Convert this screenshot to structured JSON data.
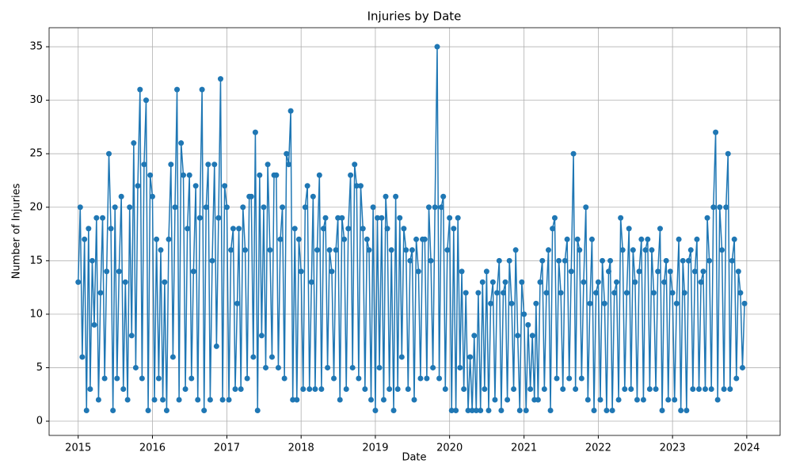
{
  "chart_data": {
    "type": "line",
    "title": "Injuries by Date",
    "x_label": "Date",
    "y_label": "Number of Injuries",
    "x": [
      "2015-01-01",
      "2015-01-11",
      "2015-01-21",
      "2015-02-01",
      "2015-02-11",
      "2015-02-21",
      "2015-03-01",
      "2015-03-11",
      "2015-03-21",
      "2015-04-01",
      "2015-04-11",
      "2015-04-21",
      "2015-05-01",
      "2015-05-11",
      "2015-05-21",
      "2015-06-01",
      "2015-06-11",
      "2015-06-21",
      "2015-07-01",
      "2015-07-11",
      "2015-07-21",
      "2015-08-01",
      "2015-08-11",
      "2015-08-21",
      "2015-09-01",
      "2015-09-11",
      "2015-09-21",
      "2015-10-01",
      "2015-10-11",
      "2015-10-21",
      "2015-11-01",
      "2015-11-11",
      "2015-11-21",
      "2015-12-01",
      "2015-12-11",
      "2015-12-21",
      "2016-01-01",
      "2016-01-11",
      "2016-01-21",
      "2016-02-01",
      "2016-02-11",
      "2016-02-21",
      "2016-03-01",
      "2016-03-11",
      "2016-03-21",
      "2016-04-01",
      "2016-04-11",
      "2016-04-21",
      "2016-05-01",
      "2016-05-11",
      "2016-05-21",
      "2016-06-01",
      "2016-06-11",
      "2016-06-21",
      "2016-07-01",
      "2016-07-11",
      "2016-07-21",
      "2016-08-01",
      "2016-08-11",
      "2016-08-21",
      "2016-09-01",
      "2016-09-11",
      "2016-09-21",
      "2016-10-01",
      "2016-10-11",
      "2016-10-21",
      "2016-11-01",
      "2016-11-11",
      "2016-11-21",
      "2016-12-01",
      "2016-12-11",
      "2016-12-21",
      "2017-01-01",
      "2017-01-11",
      "2017-01-21",
      "2017-02-01",
      "2017-02-11",
      "2017-02-21",
      "2017-03-01",
      "2017-03-11",
      "2017-03-21",
      "2017-04-01",
      "2017-04-11",
      "2017-04-21",
      "2017-05-01",
      "2017-05-11",
      "2017-05-21",
      "2017-06-01",
      "2017-06-11",
      "2017-06-21",
      "2017-07-01",
      "2017-07-11",
      "2017-07-21",
      "2017-08-01",
      "2017-08-11",
      "2017-08-21",
      "2017-09-01",
      "2017-09-11",
      "2017-09-21",
      "2017-10-01",
      "2017-10-11",
      "2017-10-21",
      "2017-11-01",
      "2017-11-11",
      "2017-11-21",
      "2017-12-01",
      "2017-12-11",
      "2017-12-21",
      "2018-01-01",
      "2018-01-11",
      "2018-01-21",
      "2018-02-01",
      "2018-02-11",
      "2018-02-21",
      "2018-03-01",
      "2018-03-11",
      "2018-03-21",
      "2018-04-01",
      "2018-04-11",
      "2018-04-21",
      "2018-05-01",
      "2018-05-11",
      "2018-05-21",
      "2018-06-01",
      "2018-06-11",
      "2018-06-21",
      "2018-07-01",
      "2018-07-11",
      "2018-07-21",
      "2018-08-01",
      "2018-08-11",
      "2018-08-21",
      "2018-09-01",
      "2018-09-11",
      "2018-09-21",
      "2018-10-01",
      "2018-10-11",
      "2018-10-21",
      "2018-11-01",
      "2018-11-11",
      "2018-11-21",
      "2018-12-01",
      "2018-12-11",
      "2018-12-21",
      "2019-01-01",
      "2019-01-11",
      "2019-01-21",
      "2019-02-01",
      "2019-02-11",
      "2019-02-21",
      "2019-03-01",
      "2019-03-11",
      "2019-03-21",
      "2019-04-01",
      "2019-04-11",
      "2019-04-21",
      "2019-05-01",
      "2019-05-11",
      "2019-05-21",
      "2019-06-01",
      "2019-06-11",
      "2019-06-21",
      "2019-07-01",
      "2019-07-11",
      "2019-07-21",
      "2019-08-01",
      "2019-08-11",
      "2019-08-21",
      "2019-09-01",
      "2019-09-11",
      "2019-09-21",
      "2019-10-01",
      "2019-10-11",
      "2019-10-21",
      "2019-11-01",
      "2019-11-11",
      "2019-11-21",
      "2019-12-01",
      "2019-12-11",
      "2019-12-21",
      "2020-01-01",
      "2020-01-11",
      "2020-01-21",
      "2020-02-01",
      "2020-02-11",
      "2020-02-21",
      "2020-03-01",
      "2020-03-11",
      "2020-03-21",
      "2020-04-01",
      "2020-04-11",
      "2020-04-21",
      "2020-05-01",
      "2020-05-11",
      "2020-05-21",
      "2020-06-01",
      "2020-06-11",
      "2020-06-21",
      "2020-07-01",
      "2020-07-11",
      "2020-07-21",
      "2020-08-01",
      "2020-08-11",
      "2020-08-21",
      "2020-09-01",
      "2020-09-11",
      "2020-09-21",
      "2020-10-01",
      "2020-10-11",
      "2020-10-21",
      "2020-11-01",
      "2020-11-11",
      "2020-11-21",
      "2020-12-01",
      "2020-12-11",
      "2020-12-21",
      "2021-01-01",
      "2021-01-11",
      "2021-01-21",
      "2021-02-01",
      "2021-02-11",
      "2021-02-21",
      "2021-03-01",
      "2021-03-11",
      "2021-03-21",
      "2021-04-01",
      "2021-04-11",
      "2021-04-21",
      "2021-05-01",
      "2021-05-11",
      "2021-05-21",
      "2021-06-01",
      "2021-06-11",
      "2021-06-21",
      "2021-07-01",
      "2021-07-11",
      "2021-07-21",
      "2021-08-01",
      "2021-08-11",
      "2021-08-21",
      "2021-09-01",
      "2021-09-11",
      "2021-09-21",
      "2021-10-01",
      "2021-10-11",
      "2021-10-21",
      "2021-11-01",
      "2021-11-11",
      "2021-11-21",
      "2021-12-01",
      "2021-12-11",
      "2021-12-21",
      "2022-01-01",
      "2022-01-11",
      "2022-01-21",
      "2022-02-01",
      "2022-02-11",
      "2022-02-21",
      "2022-03-01",
      "2022-03-11",
      "2022-03-21",
      "2022-04-01",
      "2022-04-11",
      "2022-04-21",
      "2022-05-01",
      "2022-05-11",
      "2022-05-21",
      "2022-06-01",
      "2022-06-11",
      "2022-06-21",
      "2022-07-01",
      "2022-07-11",
      "2022-07-21",
      "2022-08-01",
      "2022-08-11",
      "2022-08-21",
      "2022-09-01",
      "2022-09-11",
      "2022-09-21",
      "2022-10-01",
      "2022-10-11",
      "2022-10-21",
      "2022-11-01",
      "2022-11-11",
      "2022-11-21",
      "2022-12-01",
      "2022-12-11",
      "2022-12-21",
      "2023-01-01",
      "2023-01-11",
      "2023-01-21",
      "2023-02-01",
      "2023-02-11",
      "2023-02-21",
      "2023-03-01",
      "2023-03-11",
      "2023-03-21",
      "2023-04-01",
      "2023-04-11",
      "2023-04-21",
      "2023-05-01",
      "2023-05-11",
      "2023-05-21",
      "2023-06-01",
      "2023-06-11",
      "2023-06-21",
      "2023-07-01",
      "2023-07-11",
      "2023-07-21",
      "2023-08-01",
      "2023-08-11",
      "2023-08-21",
      "2023-09-01",
      "2023-09-11",
      "2023-09-21",
      "2023-10-01",
      "2023-10-11",
      "2023-10-21",
      "2023-11-01",
      "2023-11-11",
      "2023-11-21",
      "2023-12-01",
      "2023-12-11",
      "2023-12-21"
    ],
    "values": [
      13,
      20,
      6,
      17,
      1,
      18,
      3,
      15,
      9,
      19,
      2,
      12,
      19,
      4,
      14,
      25,
      18,
      1,
      20,
      4,
      14,
      21,
      3,
      13,
      2,
      20,
      8,
      26,
      5,
      22,
      31,
      4,
      24,
      30,
      1,
      23,
      21,
      2,
      17,
      4,
      16,
      2,
      13,
      1,
      17,
      24,
      6,
      20,
      31,
      2,
      26,
      23,
      3,
      18,
      23,
      4,
      14,
      22,
      2,
      19,
      31,
      1,
      20,
      24,
      2,
      15,
      24,
      7,
      19,
      32,
      2,
      22,
      20,
      2,
      16,
      18,
      3,
      11,
      18,
      3,
      20,
      16,
      4,
      21,
      21,
      6,
      27,
      1,
      23,
      8,
      20,
      5,
      24,
      16,
      6,
      23,
      23,
      5,
      17,
      20,
      4,
      25,
      24,
      29,
      2,
      18,
      2,
      17,
      14,
      3,
      20,
      22,
      3,
      13,
      21,
      3,
      16,
      23,
      3,
      18,
      19,
      5,
      16,
      14,
      4,
      16,
      19,
      2,
      19,
      17,
      3,
      18,
      23,
      5,
      24,
      22,
      4,
      22,
      18,
      3,
      17,
      16,
      2,
      20,
      1,
      19,
      5,
      19,
      2,
      21,
      18,
      3,
      16,
      1,
      21,
      3,
      19,
      6,
      18,
      16,
      3,
      15,
      16,
      2,
      17,
      14,
      4,
      17,
      17,
      4,
      20,
      15,
      5,
      20,
      35,
      4,
      20,
      21,
      3,
      16,
      19,
      1,
      18,
      1,
      19,
      5,
      14,
      3,
      12,
      1,
      6,
      1,
      8,
      1,
      12,
      1,
      13,
      3,
      14,
      1,
      11,
      13,
      2,
      12,
      15,
      1,
      12,
      13,
      2,
      15,
      11,
      3,
      16,
      8,
      1,
      13,
      10,
      1,
      9,
      3,
      8,
      2,
      11,
      2,
      13,
      15,
      3,
      12,
      16,
      1,
      18,
      19,
      4,
      15,
      12,
      3,
      15,
      17,
      4,
      14,
      25,
      3,
      17,
      16,
      4,
      13,
      20,
      2,
      11,
      17,
      1,
      12,
      13,
      2,
      15,
      11,
      1,
      14,
      15,
      1,
      12,
      13,
      2,
      19,
      16,
      3,
      12,
      18,
      3,
      16,
      13,
      2,
      14,
      17,
      2,
      16,
      17,
      3,
      16,
      12,
      3,
      14,
      18,
      1,
      13,
      15,
      2,
      14,
      12,
      2,
      11,
      17,
      1,
      15,
      12,
      1,
      15,
      16,
      3,
      14,
      17,
      3,
      13,
      14,
      3,
      19,
      15,
      3,
      20,
      27,
      2,
      20,
      16,
      3,
      20,
      25,
      3,
      15,
      17,
      4,
      14,
      12,
      5,
      11
    ],
    "color": "#1f77b4",
    "xlim": [
      "2014-08-11",
      "2024-06-13"
    ],
    "xticks": [
      {
        "value": "2015-01-01",
        "label": "2015"
      },
      {
        "value": "2016-01-01",
        "label": "2016"
      },
      {
        "value": "2017-01-01",
        "label": "2017"
      },
      {
        "value": "2018-01-01",
        "label": "2018"
      },
      {
        "value": "2019-01-01",
        "label": "2019"
      },
      {
        "value": "2020-01-01",
        "label": "2020"
      },
      {
        "value": "2021-01-01",
        "label": "2021"
      },
      {
        "value": "2022-01-01",
        "label": "2022"
      },
      {
        "value": "2023-01-01",
        "label": "2023"
      },
      {
        "value": "2024-01-01",
        "label": "2024"
      }
    ],
    "ylim": [
      -1.33,
      36.78
    ],
    "yticks": [
      0,
      5,
      10,
      15,
      20,
      25,
      30,
      35
    ],
    "grid": true
  }
}
